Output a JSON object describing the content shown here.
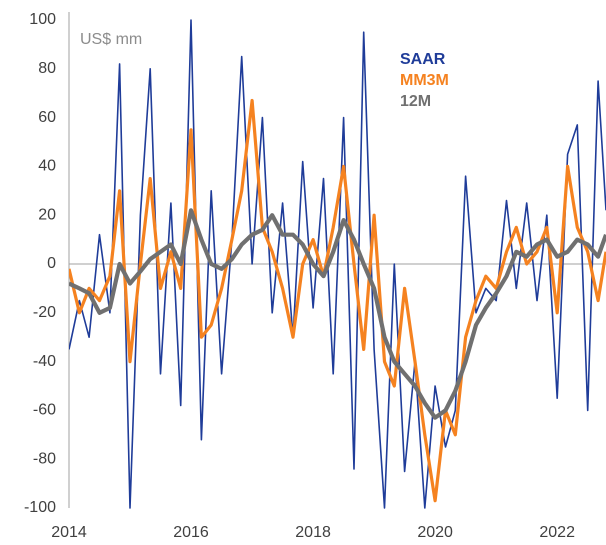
{
  "chart_data": {
    "type": "line",
    "annotation": "US$ mm",
    "x": [
      2014,
      2014.17,
      2014.33,
      2014.5,
      2014.67,
      2014.83,
      2015,
      2015.17,
      2015.33,
      2015.5,
      2015.67,
      2015.83,
      2016,
      2016.17,
      2016.33,
      2016.5,
      2016.67,
      2016.83,
      2017,
      2017.17,
      2017.33,
      2017.5,
      2017.67,
      2017.83,
      2018,
      2018.17,
      2018.33,
      2018.5,
      2018.67,
      2018.83,
      2019,
      2019.17,
      2019.33,
      2019.5,
      2019.67,
      2019.83,
      2020,
      2020.17,
      2020.33,
      2020.5,
      2020.67,
      2020.83,
      2021,
      2021.17,
      2021.33,
      2021.5,
      2021.67,
      2021.83,
      2022,
      2022.17,
      2022.33,
      2022.5,
      2022.67,
      2022.8
    ],
    "series": [
      {
        "name": "SAAR",
        "color": "#1f3c99",
        "values": [
          -35,
          -15,
          -30,
          12,
          -20,
          82,
          -100,
          20,
          80,
          -45,
          25,
          -58,
          100,
          -72,
          30,
          -45,
          10,
          85,
          0,
          60,
          -20,
          25,
          -30,
          42,
          -18,
          35,
          -45,
          60,
          -84,
          95,
          -35,
          -100,
          0,
          -85,
          -40,
          -100,
          -50,
          -75,
          -60,
          36,
          -20,
          -10,
          -15,
          26,
          -10,
          25,
          -15,
          20,
          -55,
          45,
          57,
          -60,
          75,
          22
        ]
      },
      {
        "name": "MM3M",
        "color": "#f58220",
        "values": [
          -2,
          -20,
          -10,
          -15,
          -5,
          30,
          -40,
          0,
          35,
          -10,
          5,
          -10,
          55,
          -30,
          -25,
          -10,
          10,
          30,
          67,
          15,
          5,
          -10,
          -30,
          0,
          10,
          -5,
          15,
          40,
          0,
          -35,
          20,
          -40,
          -50,
          -10,
          -40,
          -70,
          -97,
          -60,
          -70,
          -30,
          -15,
          -5,
          -10,
          5,
          15,
          0,
          5,
          15,
          -20,
          40,
          15,
          5,
          -15,
          5
        ]
      },
      {
        "name": "12M",
        "color": "#707070",
        "values": [
          -8,
          -10,
          -12,
          -20,
          -18,
          0,
          -8,
          -3,
          2,
          5,
          8,
          0,
          22,
          10,
          0,
          -2,
          2,
          8,
          12,
          14,
          20,
          12,
          12,
          8,
          0,
          -5,
          5,
          18,
          10,
          0,
          -10,
          -30,
          -40,
          -45,
          -50,
          -57,
          -63,
          -60,
          -52,
          -40,
          -25,
          -18,
          -12,
          -5,
          5,
          3,
          8,
          10,
          3,
          5,
          10,
          8,
          3,
          12
        ]
      }
    ],
    "xlim": [
      2014,
      2022.8
    ],
    "xticks": [
      2014,
      2016,
      2018,
      2020,
      2022
    ],
    "ylim": [
      -100,
      100
    ],
    "yticks": [
      -100,
      -80,
      -60,
      -40,
      -20,
      0,
      20,
      40,
      60,
      80,
      100
    ]
  }
}
